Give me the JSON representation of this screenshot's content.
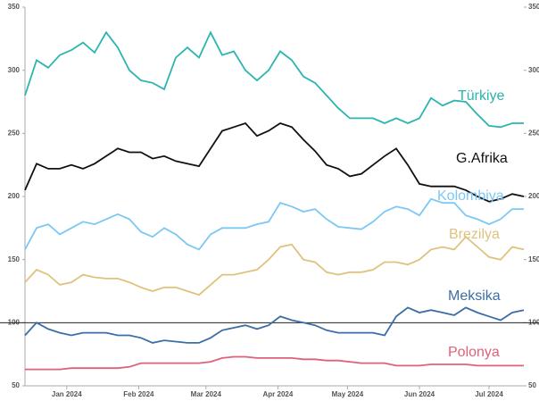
{
  "chart_data": {
    "type": "line",
    "x": [
      0,
      5,
      10,
      15,
      20,
      25,
      30,
      35,
      40,
      45,
      50,
      55,
      60,
      65,
      70,
      75,
      80,
      85,
      90,
      95,
      100,
      105,
      110,
      115,
      120,
      125,
      130,
      135,
      140,
      145,
      150,
      155,
      160,
      165,
      170,
      175,
      180,
      185,
      190,
      195,
      200,
      205,
      210,
      215
    ],
    "xlim": [
      0,
      215
    ],
    "xticks": [
      {
        "value": 18,
        "label": "Jan 2024"
      },
      {
        "value": 49,
        "label": "Feb 2024"
      },
      {
        "value": 78,
        "label": "Mar 2024"
      },
      {
        "value": 109,
        "label": "Apr 2024"
      },
      {
        "value": 139,
        "label": "May 2024"
      },
      {
        "value": 170,
        "label": "Jun 2024"
      },
      {
        "value": 200,
        "label": "Jul 2024"
      }
    ],
    "ylim": [
      50,
      350
    ],
    "yticks": [
      50,
      100,
      150,
      200,
      250,
      300,
      350
    ],
    "y2lim": [
      50,
      350
    ],
    "y2ticks": [
      50,
      100,
      150,
      200,
      250,
      300,
      350
    ],
    "reference_line": 100,
    "series": [
      {
        "name": "Türkiye",
        "color": "#2bb5b0",
        "values": [
          280,
          308,
          302,
          312,
          316,
          322,
          314,
          330,
          318,
          300,
          292,
          290,
          285,
          310,
          318,
          310,
          330,
          312,
          315,
          300,
          292,
          300,
          315,
          308,
          295,
          290,
          280,
          270,
          262,
          262,
          262,
          258,
          262,
          258,
          262,
          278,
          272,
          276,
          275,
          265,
          256,
          255,
          258,
          258
        ]
      },
      {
        "name": "G.Afrika",
        "color": "#111111",
        "values": [
          205,
          226,
          222,
          222,
          225,
          222,
          226,
          232,
          238,
          235,
          235,
          230,
          232,
          228,
          226,
          224,
          238,
          252,
          255,
          258,
          248,
          252,
          258,
          255,
          245,
          236,
          225,
          222,
          216,
          218,
          225,
          232,
          238,
          225,
          210,
          208,
          208,
          208,
          205,
          200,
          196,
          198,
          202,
          200
        ]
      },
      {
        "name": "Kolombiya",
        "color": "#7cc8f4",
        "values": [
          158,
          175,
          178,
          170,
          175,
          180,
          178,
          182,
          186,
          182,
          172,
          168,
          175,
          170,
          162,
          158,
          170,
          175,
          175,
          175,
          178,
          180,
          195,
          192,
          188,
          190,
          182,
          176,
          175,
          174,
          180,
          188,
          192,
          190,
          185,
          198,
          195,
          195,
          185,
          182,
          178,
          182,
          190,
          190
        ]
      },
      {
        "name": "Brezilya",
        "color": "#dfc27d",
        "values": [
          132,
          142,
          138,
          130,
          132,
          138,
          136,
          135,
          135,
          132,
          128,
          125,
          128,
          128,
          125,
          122,
          130,
          138,
          138,
          140,
          142,
          150,
          160,
          162,
          150,
          148,
          140,
          138,
          140,
          140,
          142,
          148,
          148,
          146,
          150,
          158,
          160,
          158,
          168,
          160,
          152,
          150,
          160,
          158
        ]
      },
      {
        "name": "Meksika",
        "color": "#3b6ea5",
        "values": [
          90,
          100,
          95,
          92,
          90,
          92,
          92,
          92,
          90,
          90,
          88,
          84,
          86,
          85,
          84,
          84,
          88,
          94,
          96,
          98,
          95,
          98,
          105,
          102,
          100,
          98,
          94,
          92,
          92,
          92,
          92,
          90,
          105,
          112,
          108,
          110,
          108,
          106,
          112,
          108,
          105,
          102,
          108,
          110
        ]
      },
      {
        "name": "Polonya",
        "color": "#e0607a",
        "values": [
          63,
          63,
          63,
          63,
          64,
          64,
          64,
          64,
          64,
          65,
          68,
          68,
          68,
          68,
          68,
          68,
          69,
          72,
          73,
          73,
          72,
          72,
          72,
          72,
          71,
          71,
          70,
          70,
          69,
          68,
          68,
          68,
          66,
          66,
          66,
          67,
          67,
          67,
          67,
          66,
          66,
          66,
          66,
          66
        ]
      }
    ]
  }
}
